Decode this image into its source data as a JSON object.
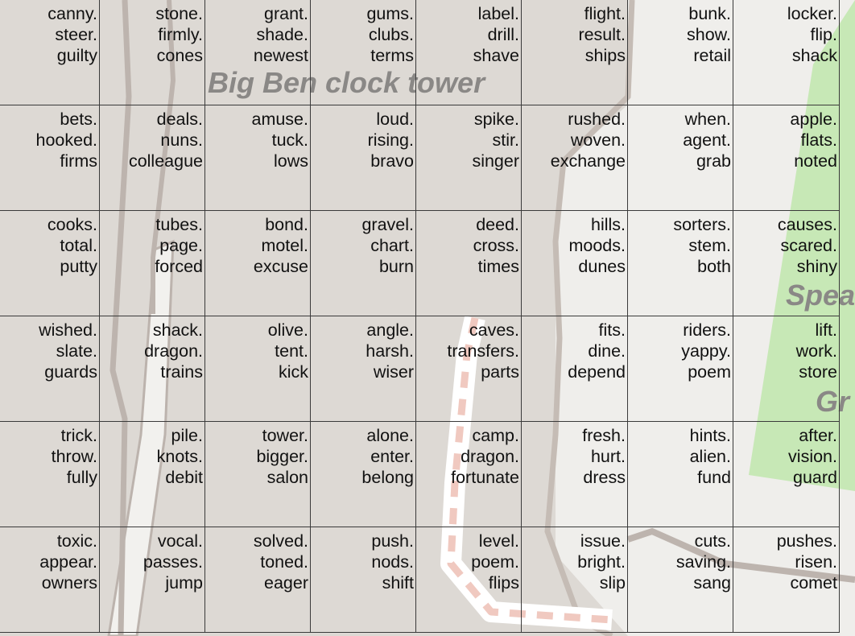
{
  "map": {
    "labels": [
      {
        "id": "big-ben",
        "text": "Big Ben clock tower"
      },
      {
        "id": "speaker",
        "text": "Spea"
      },
      {
        "id": "green",
        "text": "Gr"
      }
    ],
    "colors": {
      "background": "#ddd9d4",
      "light_area": "#f1f0ed",
      "park": "#c5e8b4",
      "road_outline": "#b7aea8",
      "path_dash": "#f0c9c0",
      "grid_line": "#3a3a3a",
      "label": "#8a8886"
    }
  },
  "grid": {
    "cells": [
      [
        [
          "canny.",
          "steer.",
          "guilty"
        ],
        [
          "stone.",
          "firmly.",
          "cones"
        ],
        [
          "grant.",
          "shade.",
          "newest"
        ],
        [
          "gums.",
          "clubs.",
          "terms"
        ],
        [
          "label.",
          "drill.",
          "shave"
        ],
        [
          "flight.",
          "result.",
          "ships"
        ],
        [
          "bunk.",
          "show.",
          "retail"
        ],
        [
          "locker.",
          "flip.",
          "shack"
        ]
      ],
      [
        [
          "bets.",
          "hooked.",
          "firms"
        ],
        [
          "deals.",
          "nuns.",
          "colleague"
        ],
        [
          "amuse.",
          "tuck.",
          "lows"
        ],
        [
          "loud.",
          "rising.",
          "bravo"
        ],
        [
          "spike.",
          "stir.",
          "singer"
        ],
        [
          "rushed.",
          "woven.",
          "exchange"
        ],
        [
          "when.",
          "agent.",
          "grab"
        ],
        [
          "apple.",
          "flats.",
          "noted"
        ]
      ],
      [
        [
          "cooks.",
          "total.",
          "putty"
        ],
        [
          "tubes.",
          "page.",
          "forced"
        ],
        [
          "bond.",
          "motel.",
          "excuse"
        ],
        [
          "gravel.",
          "chart.",
          "burn"
        ],
        [
          "deed.",
          "cross.",
          "times"
        ],
        [
          "hills.",
          "moods.",
          "dunes"
        ],
        [
          "sorters.",
          "stem.",
          "both"
        ],
        [
          "causes.",
          "scared.",
          "shiny"
        ]
      ],
      [
        [
          "wished.",
          "slate.",
          "guards"
        ],
        [
          "shack.",
          "dragon.",
          "trains"
        ],
        [
          "olive.",
          "tent.",
          "kick"
        ],
        [
          "angle.",
          "harsh.",
          "wiser"
        ],
        [
          "caves.",
          "transfers.",
          "parts"
        ],
        [
          "fits.",
          "dine.",
          "depend"
        ],
        [
          "riders.",
          "yappy.",
          "poem"
        ],
        [
          "lift.",
          "work.",
          "store"
        ]
      ],
      [
        [
          "trick.",
          "throw.",
          "fully"
        ],
        [
          "pile.",
          "knots.",
          "debit"
        ],
        [
          "tower.",
          "bigger.",
          "salon"
        ],
        [
          "alone.",
          "enter.",
          "belong"
        ],
        [
          "camp.",
          "dragon.",
          "fortunate"
        ],
        [
          "fresh.",
          "hurt.",
          "dress"
        ],
        [
          "hints.",
          "alien.",
          "fund"
        ],
        [
          "after.",
          "vision.",
          "guard"
        ]
      ],
      [
        [
          "toxic.",
          "appear.",
          "owners"
        ],
        [
          "vocal.",
          "passes.",
          "jump"
        ],
        [
          "solved.",
          "toned.",
          "eager"
        ],
        [
          "push.",
          "nods.",
          "shift"
        ],
        [
          "level.",
          "poem.",
          "flips"
        ],
        [
          "issue.",
          "bright.",
          "slip"
        ],
        [
          "cuts.",
          "saving.",
          "sang"
        ],
        [
          "pushes.",
          "risen.",
          "comet"
        ]
      ]
    ]
  }
}
